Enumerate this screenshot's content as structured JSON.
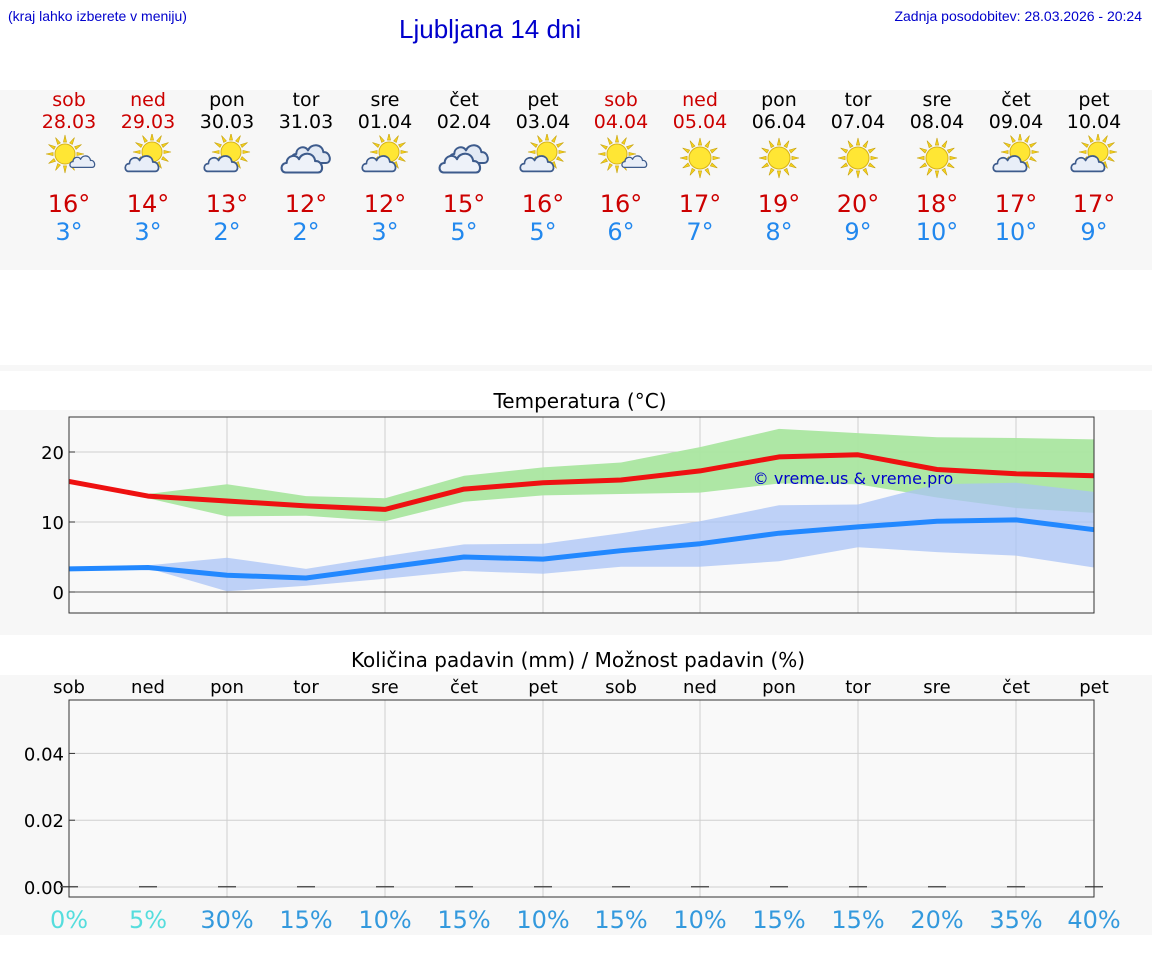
{
  "header": {
    "hint": "(kraj lahko izberete v meniju)",
    "title": "Ljubljana 14 dni",
    "updated": "Zadnja posodobitev: 28.03.2026 - 20:24"
  },
  "days": [
    {
      "name": "sob",
      "date": "28.03",
      "icon": "sun-small-cloud-icon",
      "max": "16°",
      "min": "3°",
      "weekend": true
    },
    {
      "name": "ned",
      "date": "29.03",
      "icon": "sun-cloud-icon",
      "max": "14°",
      "min": "3°",
      "weekend": true
    },
    {
      "name": "pon",
      "date": "30.03",
      "icon": "sun-cloud-icon",
      "max": "13°",
      "min": "2°",
      "weekend": false
    },
    {
      "name": "tor",
      "date": "31.03",
      "icon": "cloudy-icon",
      "max": "12°",
      "min": "2°",
      "weekend": false
    },
    {
      "name": "sre",
      "date": "01.04",
      "icon": "sun-cloud-icon",
      "max": "12°",
      "min": "3°",
      "weekend": false
    },
    {
      "name": "čet",
      "date": "02.04",
      "icon": "cloudy-icon",
      "max": "15°",
      "min": "5°",
      "weekend": false
    },
    {
      "name": "pet",
      "date": "03.04",
      "icon": "sun-cloud-icon",
      "max": "16°",
      "min": "5°",
      "weekend": false
    },
    {
      "name": "sob",
      "date": "04.04",
      "icon": "sun-small-cloud-icon",
      "max": "16°",
      "min": "6°",
      "weekend": true
    },
    {
      "name": "ned",
      "date": "05.04",
      "icon": "sun-icon",
      "max": "17°",
      "min": "7°",
      "weekend": true
    },
    {
      "name": "pon",
      "date": "06.04",
      "icon": "sun-icon",
      "max": "19°",
      "min": "8°",
      "weekend": false
    },
    {
      "name": "tor",
      "date": "07.04",
      "icon": "sun-icon",
      "max": "20°",
      "min": "9°",
      "weekend": false
    },
    {
      "name": "sre",
      "date": "08.04",
      "icon": "sun-icon",
      "max": "18°",
      "min": "10°",
      "weekend": false
    },
    {
      "name": "čet",
      "date": "09.04",
      "icon": "sun-cloud-icon",
      "max": "17°",
      "min": "10°",
      "weekend": false
    },
    {
      "name": "pet",
      "date": "10.04",
      "icon": "sun-cloud-icon",
      "max": "17°",
      "min": "9°",
      "weekend": false
    }
  ],
  "colors": {
    "max_line": "#ee1111",
    "min_line": "#2288ff",
    "max_band": "#aae6a0",
    "min_band": "#a9c3f5",
    "weekend": "#cc0000",
    "pct_low": "#55dddd",
    "pct_high": "#3399dd",
    "link": "#0000cc"
  },
  "chart_data": [
    {
      "type": "line",
      "title": "Temperatura (°C)",
      "watermark": "© vreme.us & vreme.pro",
      "x": [
        0,
        1,
        2,
        3,
        4,
        5,
        6,
        7,
        8,
        9,
        10,
        11,
        12,
        13
      ],
      "ylim": [
        -3,
        25
      ],
      "yticks": [
        0,
        10,
        20
      ],
      "grid": true,
      "series": [
        {
          "role": "max",
          "values": [
            15.8,
            13.7,
            13.0,
            12.3,
            11.8,
            14.7,
            15.6,
            16.0,
            17.3,
            19.3,
            19.6,
            17.5,
            16.9,
            16.6
          ],
          "band_high": [
            15.8,
            14.0,
            15.4,
            13.7,
            13.4,
            16.6,
            17.8,
            18.5,
            20.7,
            23.3,
            22.7,
            22.1,
            22.0,
            21.8
          ],
          "band_low": [
            15.8,
            13.4,
            10.8,
            10.9,
            10.1,
            12.9,
            13.8,
            14.0,
            14.2,
            15.5,
            15.4,
            13.5,
            12.0,
            11.3
          ]
        },
        {
          "role": "min",
          "values": [
            3.3,
            3.5,
            2.4,
            2.0,
            3.5,
            5.0,
            4.7,
            5.9,
            6.9,
            8.4,
            9.3,
            10.1,
            10.3,
            8.9
          ],
          "band_high": [
            3.3,
            3.8,
            4.9,
            3.3,
            5.1,
            6.8,
            6.9,
            8.4,
            10.1,
            12.4,
            12.5,
            15.4,
            15.6,
            14.3
          ],
          "band_low": [
            3.3,
            3.4,
            0.1,
            0.9,
            1.9,
            3.0,
            2.6,
            3.6,
            3.6,
            4.4,
            6.4,
            5.7,
            5.2,
            3.5
          ]
        }
      ]
    },
    {
      "type": "bar",
      "title": "Količina padavin (mm) / Možnost padavin (%)",
      "categories": [
        "sob",
        "ned",
        "pon",
        "tor",
        "sre",
        "čet",
        "pet",
        "sob",
        "ned",
        "pon",
        "tor",
        "sre",
        "čet",
        "pet"
      ],
      "values": [
        0,
        0,
        0,
        0,
        0,
        0,
        0,
        0,
        0,
        0,
        0,
        0,
        0,
        0
      ],
      "ylim": [
        -0.003,
        0.056
      ],
      "yticks": [
        "0.00",
        "0.02",
        "0.04"
      ],
      "ytick_values": [
        0,
        0.02,
        0.04
      ],
      "probability_labels": [
        "0%",
        "5%",
        "30%",
        "15%",
        "10%",
        "15%",
        "10%",
        "15%",
        "10%",
        "15%",
        "15%",
        "20%",
        "35%",
        "40%"
      ]
    }
  ]
}
